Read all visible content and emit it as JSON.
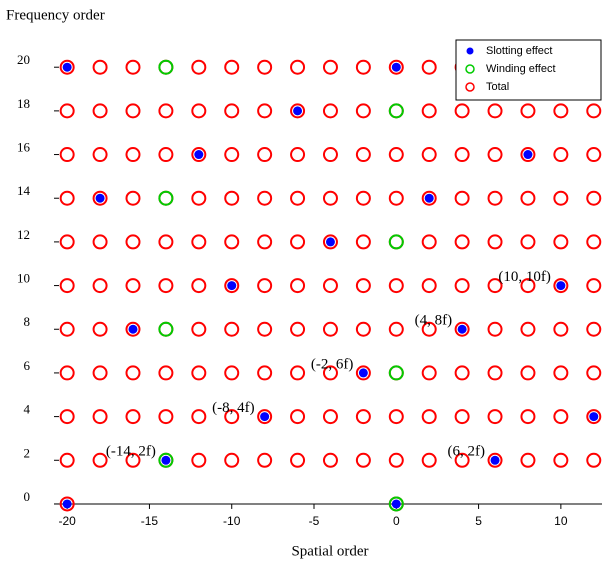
{
  "chart_data": {
    "type": "scatter",
    "ylabel": "Frequency order",
    "xlabel": "Spatial order",
    "xlim": [
      -20.8,
      12.5
    ],
    "ylim": [
      -0.3,
      21.2
    ],
    "xticks": [
      -20,
      -15,
      -10,
      -5,
      0,
      5,
      10
    ],
    "yticks": [
      0,
      2,
      4,
      6,
      8,
      10,
      12,
      14,
      16,
      18,
      20
    ],
    "legend": "upper right",
    "series": [
      {
        "name": "Total",
        "color": "#ff0000",
        "marker": "hollow",
        "x": [
          -20,
          0,
          -20,
          -18,
          -16,
          -14,
          -12,
          -10,
          -8,
          -6,
          -4,
          -2,
          0,
          2,
          4,
          6,
          8,
          10,
          12,
          -20,
          -18,
          -16,
          -14,
          -12,
          -10,
          -8,
          -6,
          -4,
          -2,
          0,
          2,
          4,
          6,
          8,
          10,
          12,
          -20,
          -18,
          -16,
          -14,
          -12,
          -10,
          -8,
          -6,
          -4,
          -2,
          0,
          2,
          4,
          6,
          8,
          10,
          12,
          -20,
          -18,
          -16,
          -14,
          -12,
          -10,
          -8,
          -6,
          -4,
          -2,
          0,
          2,
          4,
          6,
          8,
          10,
          12,
          -20,
          -18,
          -16,
          -14,
          -12,
          -10,
          -8,
          -6,
          -4,
          -2,
          0,
          2,
          4,
          6,
          8,
          10,
          12,
          -20,
          -18,
          -16,
          -14,
          -12,
          -10,
          -8,
          -6,
          -4,
          -2,
          0,
          2,
          4,
          6,
          8,
          10,
          12,
          -20,
          -18,
          -16,
          -14,
          -12,
          -10,
          -8,
          -6,
          -4,
          -2,
          0,
          2,
          4,
          6,
          8,
          10,
          12,
          -20,
          -18,
          -16,
          -14,
          -12,
          -10,
          -8,
          -6,
          -4,
          -2,
          0,
          2,
          4,
          6,
          8,
          10,
          12,
          -20,
          -18,
          -16,
          -14,
          -12,
          -10,
          -8,
          -6,
          -4,
          -2,
          0,
          2,
          4,
          6,
          8,
          10,
          12,
          -20,
          -18,
          -16,
          -14,
          -12,
          -10,
          -8,
          -6,
          -4,
          -2,
          0,
          2,
          4,
          6,
          8,
          10,
          12
        ],
        "values": [
          0,
          0,
          2,
          2,
          2,
          2,
          2,
          2,
          2,
          2,
          2,
          2,
          2,
          2,
          2,
          2,
          2,
          2,
          2,
          4,
          4,
          4,
          4,
          4,
          4,
          4,
          4,
          4,
          4,
          4,
          4,
          4,
          4,
          4,
          4,
          4,
          6,
          6,
          6,
          6,
          6,
          6,
          6,
          6,
          6,
          6,
          6,
          6,
          6,
          6,
          6,
          6,
          6,
          8,
          8,
          8,
          8,
          8,
          8,
          8,
          8,
          8,
          8,
          8,
          8,
          8,
          8,
          8,
          8,
          8,
          10,
          10,
          10,
          10,
          10,
          10,
          10,
          10,
          10,
          10,
          10,
          10,
          10,
          10,
          10,
          10,
          10,
          12,
          12,
          12,
          12,
          12,
          12,
          12,
          12,
          12,
          12,
          12,
          12,
          12,
          12,
          12,
          12,
          12,
          14,
          14,
          14,
          14,
          14,
          14,
          14,
          14,
          14,
          14,
          14,
          14,
          14,
          14,
          14,
          14,
          14,
          16,
          16,
          16,
          16,
          16,
          16,
          16,
          16,
          16,
          16,
          16,
          16,
          16,
          16,
          16,
          16,
          16,
          18,
          18,
          18,
          18,
          18,
          18,
          18,
          18,
          18,
          18,
          18,
          18,
          18,
          18,
          18,
          18,
          18,
          20,
          20,
          20,
          20,
          20,
          20,
          20,
          20,
          20,
          20,
          20,
          20,
          20,
          20,
          20,
          20,
          20
        ]
      },
      {
        "name": "Winding effect",
        "color": "#00cc00",
        "marker": "hollow",
        "x": [
          0,
          -14,
          0,
          -14,
          0,
          -14,
          0,
          -14
        ],
        "values": [
          0,
          2,
          6,
          8,
          12,
          14,
          18,
          20
        ]
      },
      {
        "name": "Slotting effect",
        "color": "#0000ff",
        "marker": "filled",
        "x": [
          -20,
          0,
          -14,
          6,
          -8,
          12,
          -2,
          -16,
          4,
          -10,
          10,
          -4,
          -18,
          2,
          -12,
          8,
          -6,
          -20,
          0
        ],
        "values": [
          0,
          0,
          2,
          2,
          4,
          4,
          6,
          8,
          8,
          10,
          10,
          12,
          14,
          14,
          16,
          16,
          18,
          20,
          20
        ]
      }
    ],
    "legend_order": [
      "Slotting effect",
      "Winding effect",
      "Total"
    ],
    "annotations": [
      {
        "text": "(-14, 2f)",
        "x": -14,
        "y": 2
      },
      {
        "text": "(6, 2f)",
        "x": 6,
        "y": 2
      },
      {
        "text": "(-8, 4f)",
        "x": -8,
        "y": 4
      },
      {
        "text": "(-2, 6f)",
        "x": -2,
        "y": 6
      },
      {
        "text": "(4, 8f)",
        "x": 4,
        "y": 8
      },
      {
        "text": "(10, 10f)",
        "x": 10,
        "y": 10
      }
    ]
  }
}
